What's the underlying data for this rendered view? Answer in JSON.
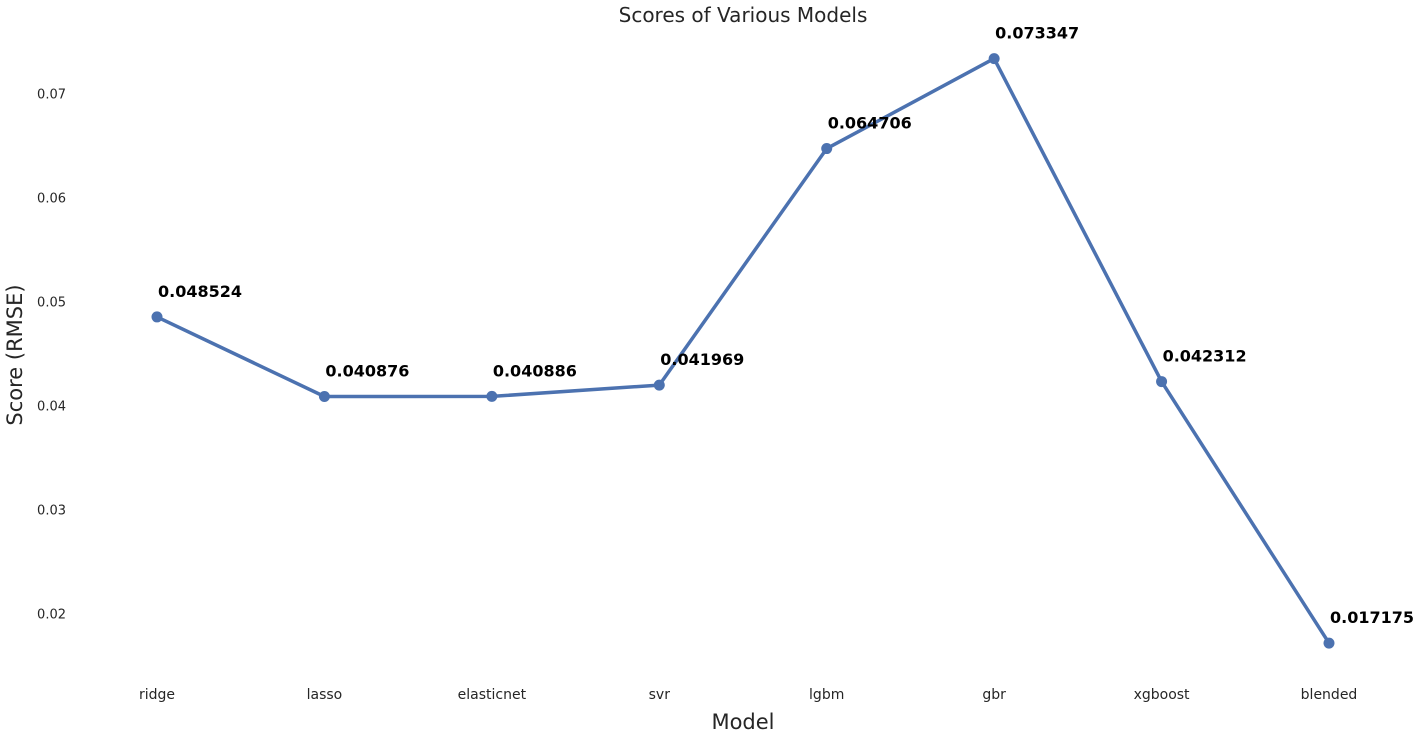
{
  "chart_data": {
    "type": "line",
    "title": "Scores of Various Models",
    "xlabel": "Model",
    "ylabel": "Score (RMSE)",
    "categories": [
      "ridge",
      "lasso",
      "elasticnet",
      "svr",
      "lgbm",
      "gbr",
      "xgboost",
      "blended"
    ],
    "values": [
      0.048524,
      0.040876,
      0.040886,
      0.041969,
      0.064706,
      0.073347,
      0.042312,
      0.017175
    ],
    "value_labels": [
      "0.048524",
      "0.040876",
      "0.040886",
      "0.041969",
      "0.064706",
      "0.073347",
      "0.042312",
      "0.017175"
    ],
    "yticks": [
      0.02,
      0.03,
      0.04,
      0.05,
      0.06,
      0.07
    ],
    "ytick_labels": [
      "0.02",
      "0.03",
      "0.04",
      "0.05",
      "0.06",
      "0.07"
    ],
    "ylim": [
      0.0144,
      0.0761
    ],
    "grid": false,
    "legend": false,
    "line_color": "#4c72b0",
    "label_color": "#000000"
  }
}
